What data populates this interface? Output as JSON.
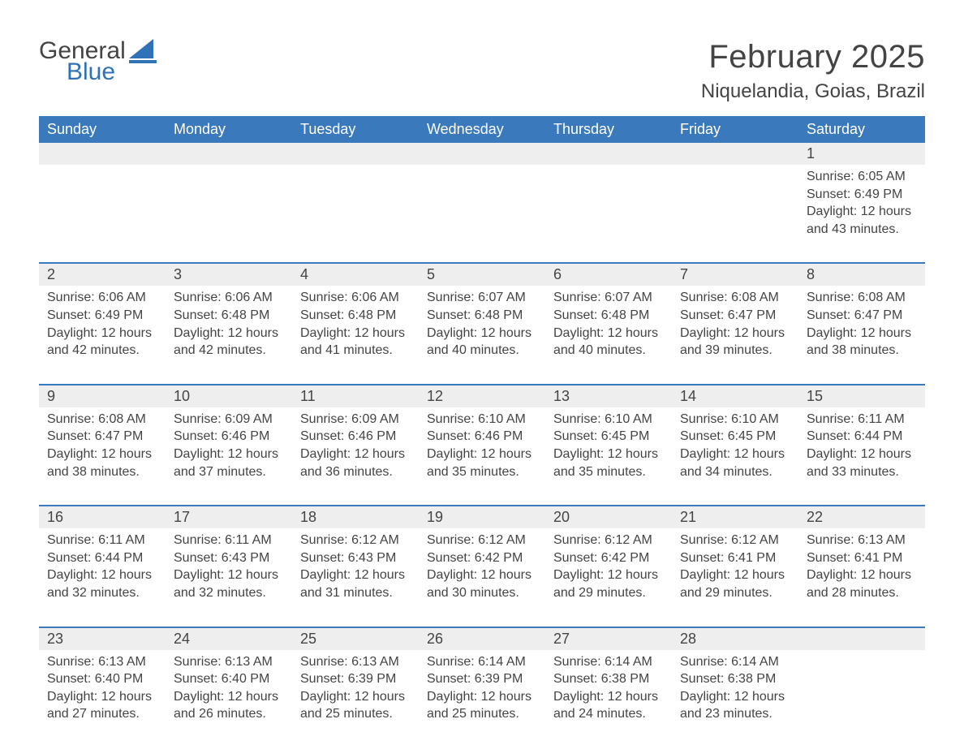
{
  "brand": {
    "word1": "General",
    "word2": "Blue",
    "word1_color": "#444444",
    "word2_color": "#2f72b8",
    "icon_color": "#2f72b8"
  },
  "title": {
    "month": "February 2025",
    "location": "Niquelandia, Goias, Brazil",
    "month_fontsize": 40,
    "location_fontsize": 24,
    "text_color": "#444444"
  },
  "styling": {
    "header_bg": "#3a79bc",
    "header_text_color": "#ffffff",
    "band_bg": "#eeeeee",
    "divider_color": "#3a79bc",
    "body_text_color": "#444444",
    "background_color": "#ffffff",
    "header_fontsize": 18,
    "daynum_fontsize": 18,
    "body_fontsize": 16
  },
  "columns": [
    "Sunday",
    "Monday",
    "Tuesday",
    "Wednesday",
    "Thursday",
    "Friday",
    "Saturday"
  ],
  "weeks": [
    [
      null,
      null,
      null,
      null,
      null,
      null,
      {
        "n": "1",
        "sunrise": "Sunrise: 6:05 AM",
        "sunset": "Sunset: 6:49 PM",
        "day1": "Daylight: 12 hours",
        "day2": "and 43 minutes."
      }
    ],
    [
      {
        "n": "2",
        "sunrise": "Sunrise: 6:06 AM",
        "sunset": "Sunset: 6:49 PM",
        "day1": "Daylight: 12 hours",
        "day2": "and 42 minutes."
      },
      {
        "n": "3",
        "sunrise": "Sunrise: 6:06 AM",
        "sunset": "Sunset: 6:48 PM",
        "day1": "Daylight: 12 hours",
        "day2": "and 42 minutes."
      },
      {
        "n": "4",
        "sunrise": "Sunrise: 6:06 AM",
        "sunset": "Sunset: 6:48 PM",
        "day1": "Daylight: 12 hours",
        "day2": "and 41 minutes."
      },
      {
        "n": "5",
        "sunrise": "Sunrise: 6:07 AM",
        "sunset": "Sunset: 6:48 PM",
        "day1": "Daylight: 12 hours",
        "day2": "and 40 minutes."
      },
      {
        "n": "6",
        "sunrise": "Sunrise: 6:07 AM",
        "sunset": "Sunset: 6:48 PM",
        "day1": "Daylight: 12 hours",
        "day2": "and 40 minutes."
      },
      {
        "n": "7",
        "sunrise": "Sunrise: 6:08 AM",
        "sunset": "Sunset: 6:47 PM",
        "day1": "Daylight: 12 hours",
        "day2": "and 39 minutes."
      },
      {
        "n": "8",
        "sunrise": "Sunrise: 6:08 AM",
        "sunset": "Sunset: 6:47 PM",
        "day1": "Daylight: 12 hours",
        "day2": "and 38 minutes."
      }
    ],
    [
      {
        "n": "9",
        "sunrise": "Sunrise: 6:08 AM",
        "sunset": "Sunset: 6:47 PM",
        "day1": "Daylight: 12 hours",
        "day2": "and 38 minutes."
      },
      {
        "n": "10",
        "sunrise": "Sunrise: 6:09 AM",
        "sunset": "Sunset: 6:46 PM",
        "day1": "Daylight: 12 hours",
        "day2": "and 37 minutes."
      },
      {
        "n": "11",
        "sunrise": "Sunrise: 6:09 AM",
        "sunset": "Sunset: 6:46 PM",
        "day1": "Daylight: 12 hours",
        "day2": "and 36 minutes."
      },
      {
        "n": "12",
        "sunrise": "Sunrise: 6:10 AM",
        "sunset": "Sunset: 6:46 PM",
        "day1": "Daylight: 12 hours",
        "day2": "and 35 minutes."
      },
      {
        "n": "13",
        "sunrise": "Sunrise: 6:10 AM",
        "sunset": "Sunset: 6:45 PM",
        "day1": "Daylight: 12 hours",
        "day2": "and 35 minutes."
      },
      {
        "n": "14",
        "sunrise": "Sunrise: 6:10 AM",
        "sunset": "Sunset: 6:45 PM",
        "day1": "Daylight: 12 hours",
        "day2": "and 34 minutes."
      },
      {
        "n": "15",
        "sunrise": "Sunrise: 6:11 AM",
        "sunset": "Sunset: 6:44 PM",
        "day1": "Daylight: 12 hours",
        "day2": "and 33 minutes."
      }
    ],
    [
      {
        "n": "16",
        "sunrise": "Sunrise: 6:11 AM",
        "sunset": "Sunset: 6:44 PM",
        "day1": "Daylight: 12 hours",
        "day2": "and 32 minutes."
      },
      {
        "n": "17",
        "sunrise": "Sunrise: 6:11 AM",
        "sunset": "Sunset: 6:43 PM",
        "day1": "Daylight: 12 hours",
        "day2": "and 32 minutes."
      },
      {
        "n": "18",
        "sunrise": "Sunrise: 6:12 AM",
        "sunset": "Sunset: 6:43 PM",
        "day1": "Daylight: 12 hours",
        "day2": "and 31 minutes."
      },
      {
        "n": "19",
        "sunrise": "Sunrise: 6:12 AM",
        "sunset": "Sunset: 6:42 PM",
        "day1": "Daylight: 12 hours",
        "day2": "and 30 minutes."
      },
      {
        "n": "20",
        "sunrise": "Sunrise: 6:12 AM",
        "sunset": "Sunset: 6:42 PM",
        "day1": "Daylight: 12 hours",
        "day2": "and 29 minutes."
      },
      {
        "n": "21",
        "sunrise": "Sunrise: 6:12 AM",
        "sunset": "Sunset: 6:41 PM",
        "day1": "Daylight: 12 hours",
        "day2": "and 29 minutes."
      },
      {
        "n": "22",
        "sunrise": "Sunrise: 6:13 AM",
        "sunset": "Sunset: 6:41 PM",
        "day1": "Daylight: 12 hours",
        "day2": "and 28 minutes."
      }
    ],
    [
      {
        "n": "23",
        "sunrise": "Sunrise: 6:13 AM",
        "sunset": "Sunset: 6:40 PM",
        "day1": "Daylight: 12 hours",
        "day2": "and 27 minutes."
      },
      {
        "n": "24",
        "sunrise": "Sunrise: 6:13 AM",
        "sunset": "Sunset: 6:40 PM",
        "day1": "Daylight: 12 hours",
        "day2": "and 26 minutes."
      },
      {
        "n": "25",
        "sunrise": "Sunrise: 6:13 AM",
        "sunset": "Sunset: 6:39 PM",
        "day1": "Daylight: 12 hours",
        "day2": "and 25 minutes."
      },
      {
        "n": "26",
        "sunrise": "Sunrise: 6:14 AM",
        "sunset": "Sunset: 6:39 PM",
        "day1": "Daylight: 12 hours",
        "day2": "and 25 minutes."
      },
      {
        "n": "27",
        "sunrise": "Sunrise: 6:14 AM",
        "sunset": "Sunset: 6:38 PM",
        "day1": "Daylight: 12 hours",
        "day2": "and 24 minutes."
      },
      {
        "n": "28",
        "sunrise": "Sunrise: 6:14 AM",
        "sunset": "Sunset: 6:38 PM",
        "day1": "Daylight: 12 hours",
        "day2": "and 23 minutes."
      },
      null
    ]
  ]
}
